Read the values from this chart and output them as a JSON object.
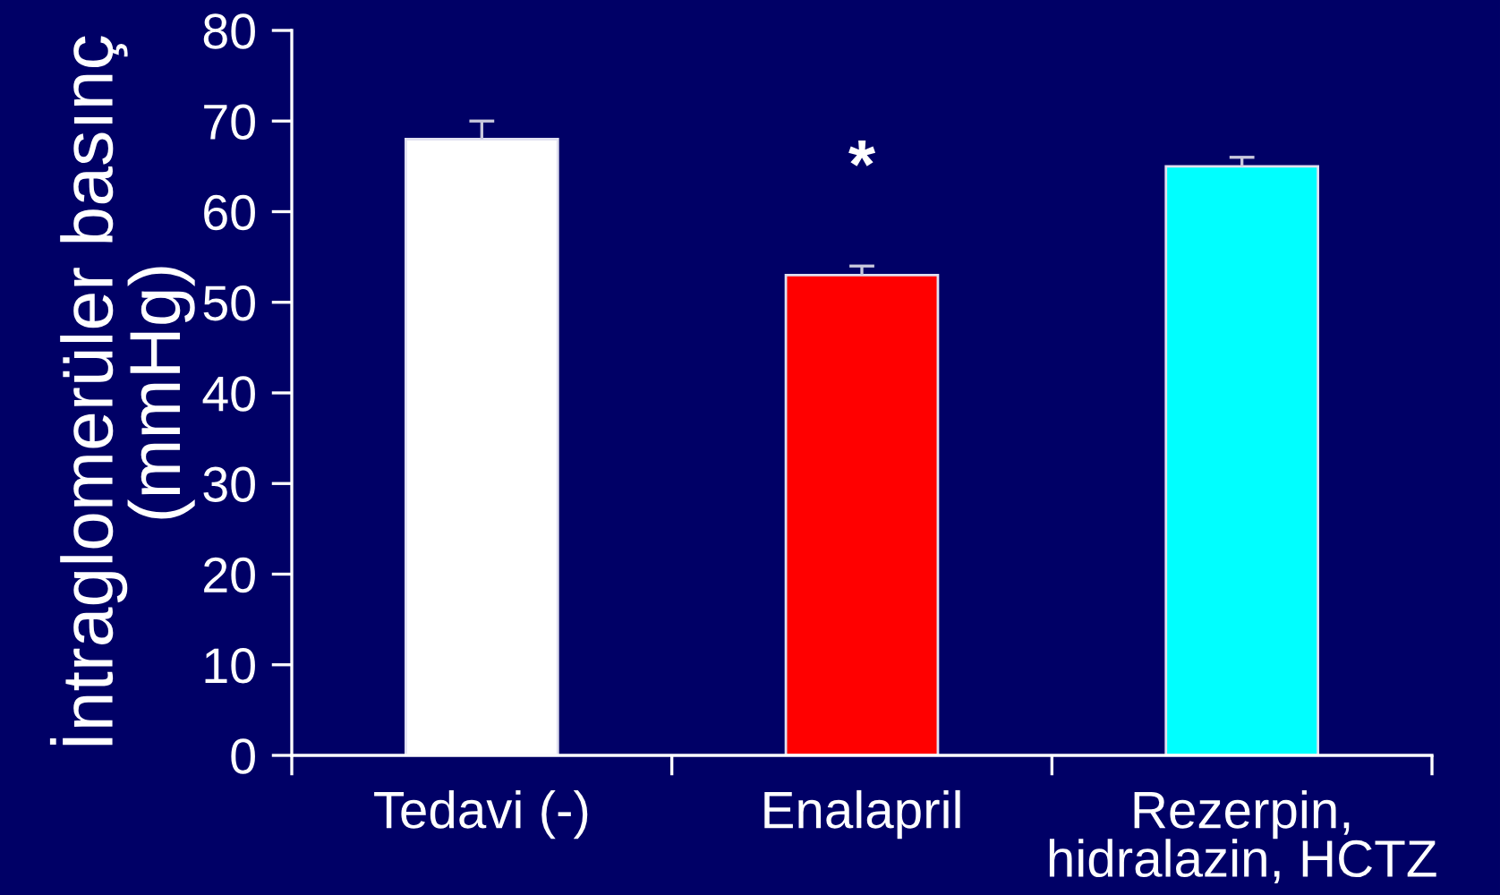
{
  "chart_data": {
    "type": "bar",
    "ylabel": "İntraglomerüler basınç\n(mmHg)",
    "categories": [
      "Tedavi (-)",
      "Enalapril",
      "Rezerpin,\nhidralazin, HCTZ"
    ],
    "values": [
      68,
      53,
      65
    ],
    "colors": [
      "#ffffff",
      "#ff0000",
      "#00ffff"
    ],
    "errors": [
      [
        68,
        70
      ],
      [
        53,
        54
      ],
      [
        65,
        66
      ]
    ],
    "ylim": [
      0,
      80
    ],
    "yticks": [
      0,
      10,
      20,
      30,
      40,
      50,
      60,
      70,
      80
    ],
    "annotations": [
      "*"
    ]
  }
}
